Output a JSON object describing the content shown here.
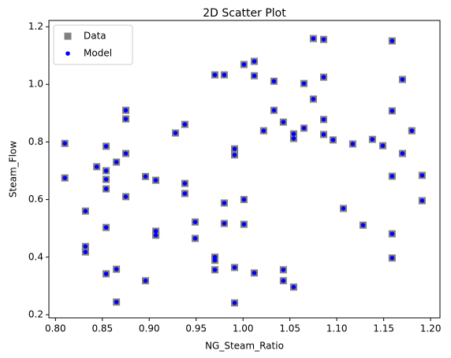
{
  "chart_data": {
    "type": "scatter",
    "title": "2D Scatter Plot",
    "x_label": "NG_Steam_Ratio",
    "y_label": "Steam_Flow",
    "x": [
      0.81,
      0.81,
      0.832,
      0.832,
      0.832,
      0.844,
      0.854,
      0.854,
      0.854,
      0.854,
      0.854,
      0.854,
      0.865,
      0.865,
      0.865,
      0.875,
      0.875,
      0.875,
      0.875,
      0.896,
      0.896,
      0.907,
      0.907,
      0.907,
      0.928,
      0.938,
      0.938,
      0.938,
      0.949,
      0.949,
      0.97,
      0.97,
      0.97,
      0.97,
      0.98,
      0.98,
      0.98,
      0.991,
      0.991,
      0.991,
      0.991,
      1.001,
      1.001,
      1.001,
      1.012,
      1.012,
      1.012,
      1.022,
      1.033,
      1.033,
      1.043,
      1.043,
      1.043,
      1.054,
      1.054,
      1.054,
      1.065,
      1.065,
      1.075,
      1.075,
      1.086,
      1.086,
      1.086,
      1.086,
      1.096,
      1.107,
      1.117,
      1.128,
      1.138,
      1.149,
      1.159,
      1.159,
      1.159,
      1.159,
      1.159,
      1.17,
      1.17,
      1.18,
      1.191,
      1.191
    ],
    "series": [
      {
        "name": "Data",
        "color": "#808080",
        "marker": "square",
        "values": [
          0.795,
          0.675,
          0.56,
          0.437,
          0.418,
          0.714,
          0.785,
          0.7,
          0.67,
          0.637,
          0.503,
          0.342,
          0.73,
          0.358,
          0.244,
          0.91,
          0.88,
          0.76,
          0.61,
          0.68,
          0.318,
          0.667,
          0.49,
          0.476,
          0.831,
          0.861,
          0.656,
          0.621,
          0.522,
          0.465,
          1.033,
          0.4,
          0.389,
          0.356,
          1.033,
          0.588,
          0.517,
          0.776,
          0.755,
          0.364,
          0.241,
          1.069,
          0.6,
          0.514,
          1.08,
          1.03,
          0.345,
          0.839,
          1.011,
          0.91,
          0.869,
          0.356,
          0.318,
          0.828,
          0.812,
          0.296,
          1.003,
          0.848,
          1.159,
          0.949,
          1.156,
          1.025,
          0.878,
          0.826,
          0.807,
          0.569,
          0.793,
          0.511,
          0.809,
          0.787,
          1.151,
          0.908,
          0.681,
          0.481,
          0.397,
          1.017,
          0.76,
          0.839,
          0.684,
          0.596
        ]
      },
      {
        "name": "Model",
        "color": "#0000ff",
        "marker": "circle",
        "values": [
          0.795,
          0.675,
          0.56,
          0.437,
          0.418,
          0.714,
          0.785,
          0.7,
          0.67,
          0.637,
          0.503,
          0.342,
          0.73,
          0.358,
          0.244,
          0.91,
          0.88,
          0.76,
          0.61,
          0.68,
          0.318,
          0.667,
          0.49,
          0.476,
          0.831,
          0.861,
          0.656,
          0.621,
          0.522,
          0.465,
          1.033,
          0.4,
          0.389,
          0.356,
          1.033,
          0.588,
          0.517,
          0.776,
          0.755,
          0.364,
          0.241,
          1.069,
          0.6,
          0.514,
          1.08,
          1.03,
          0.345,
          0.839,
          1.011,
          0.91,
          0.869,
          0.356,
          0.318,
          0.828,
          0.812,
          0.296,
          1.003,
          0.848,
          1.159,
          0.949,
          1.156,
          1.025,
          0.878,
          0.826,
          0.807,
          0.569,
          0.793,
          0.511,
          0.809,
          0.787,
          1.151,
          0.908,
          0.681,
          0.481,
          0.397,
          1.017,
          0.76,
          0.839,
          0.684,
          0.596
        ]
      }
    ],
    "xlim": [
      0.793,
      1.21
    ],
    "ylim": [
      0.189,
      1.222
    ],
    "xticks": [
      {
        "value": 0.8,
        "label": "0.80"
      },
      0.85,
      {
        "value": 0.9,
        "label": "0.90"
      },
      0.95,
      {
        "value": 1.0,
        "label": "1.00"
      },
      1.05,
      {
        "value": 1.1,
        "label": "1.10"
      },
      1.15,
      {
        "value": 1.2,
        "label": "1.20"
      }
    ],
    "yticks": [
      0.2,
      0.4,
      0.6,
      0.8,
      {
        "value": 1.0,
        "label": "1.0"
      },
      1.2
    ],
    "grid": false,
    "legend": "upper-left"
  }
}
